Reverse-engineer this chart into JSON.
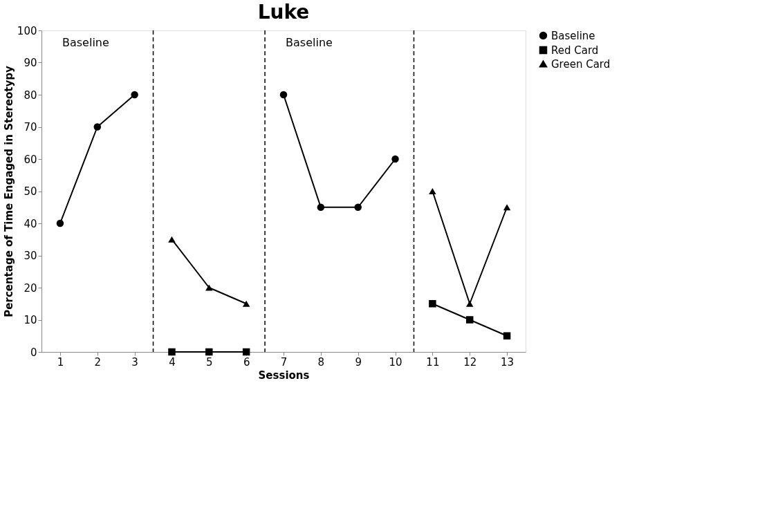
{
  "chart_data": {
    "type": "line",
    "title": "Luke",
    "xlabel": "Sessions",
    "ylabel": "Percentage of Time Engaged in Stereotypy",
    "x": [
      1,
      2,
      3,
      4,
      5,
      6,
      7,
      8,
      9,
      10,
      11,
      12,
      13
    ],
    "xlim": [
      0.5,
      13.5
    ],
    "xticks": [
      1,
      2,
      3,
      4,
      5,
      6,
      7,
      8,
      9,
      10,
      11,
      12,
      13
    ],
    "ylim": [
      0,
      100
    ],
    "yticks": [
      0,
      10,
      20,
      30,
      40,
      50,
      60,
      70,
      80,
      90,
      100
    ],
    "series": [
      {
        "name": "Baseline",
        "color": "#000000",
        "marker": "circle",
        "values": [
          40,
          70,
          80,
          null,
          null,
          null,
          80,
          45,
          45,
          60,
          null,
          null,
          null
        ]
      },
      {
        "name": "Red Card",
        "color": "#000000",
        "marker": "square",
        "values": [
          null,
          null,
          null,
          0,
          0,
          0,
          null,
          null,
          null,
          null,
          15,
          10,
          5
        ]
      },
      {
        "name": "Green Card",
        "color": "#000000",
        "marker": "triangle",
        "values": [
          null,
          null,
          null,
          35,
          20,
          15,
          null,
          null,
          null,
          null,
          50,
          15,
          45
        ]
      }
    ],
    "ref_lines": [
      {
        "axis": "x",
        "value": 3.5,
        "line_style": "dashed"
      },
      {
        "axis": "x",
        "value": 6.5,
        "line_style": "dashed"
      },
      {
        "axis": "x",
        "value": 10.5,
        "line_style": "dashed"
      }
    ],
    "annotations": [
      "Baseline",
      "Baseline"
    ],
    "grid": false,
    "legend": "right",
    "line_style": "solid"
  }
}
